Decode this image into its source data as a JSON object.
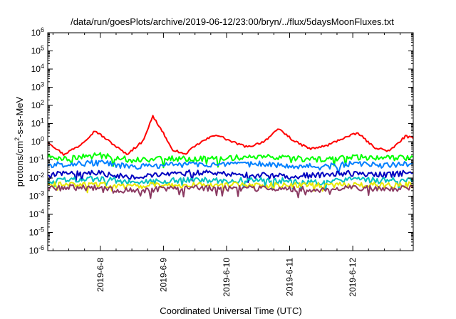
{
  "chart_data": {
    "type": "line",
    "title": "/data/run/goesPlots/archive/2019-06-12/23:00/bryn/../flux/5daysMoonFluxes.txt",
    "xlabel": "Coordinated Universal Time (UTC)",
    "ylabel": "protons/cm²-s-sr-MeV",
    "ylabel_parts": {
      "pre": "protons/cm",
      "sup": "2",
      "post": "-s-sr-MeV"
    },
    "y_scale": "log",
    "ylim": [
      1e-06,
      1000000.0
    ],
    "xlim": [
      "2019-06-07T04:00",
      "2019-06-12T23:00"
    ],
    "x_ticks": [
      "2019-6-8",
      "2019-6-9",
      "2019-6-10",
      "2019-6-11",
      "2019-6-12"
    ],
    "y_ticks": [
      {
        "base": "10",
        "exp": "6"
      },
      {
        "base": "10",
        "exp": "5"
      },
      {
        "base": "10",
        "exp": "4"
      },
      {
        "base": "10",
        "exp": "3"
      },
      {
        "base": "10",
        "exp": "2"
      },
      {
        "base": "10",
        "exp": "1"
      },
      {
        "base": "10",
        "exp": "0"
      },
      {
        "base": "10",
        "exp": "-1"
      },
      {
        "base": "10",
        "exp": "-2"
      },
      {
        "base": "10",
        "exp": "-3"
      },
      {
        "base": "10",
        "exp": "-4"
      },
      {
        "base": "10",
        "exp": "-5"
      },
      {
        "base": "10",
        "exp": "-6"
      }
    ],
    "grid": false,
    "series": [
      {
        "color": "#ff0000",
        "x": [
          "2019-06-07T04:00",
          "2019-06-07T10:00",
          "2019-06-07T16:00",
          "2019-06-07T22:00",
          "2019-06-08T04:00",
          "2019-06-08T10:00",
          "2019-06-08T16:00",
          "2019-06-08T20:00",
          "2019-06-09T00:00",
          "2019-06-09T03:00",
          "2019-06-09T08:00",
          "2019-06-09T14:00",
          "2019-06-09T20:00",
          "2019-06-10T02:00",
          "2019-06-10T08:00",
          "2019-06-10T14:00",
          "2019-06-10T20:00",
          "2019-06-11T02:00",
          "2019-06-11T08:00",
          "2019-06-11T14:00",
          "2019-06-11T20:00",
          "2019-06-12T02:00",
          "2019-06-12T08:00",
          "2019-06-12T14:00",
          "2019-06-12T20:00",
          "2019-06-12T23:00"
        ],
        "y": [
          1.0,
          0.2,
          0.6,
          4.0,
          0.9,
          0.2,
          1.0,
          25,
          3.0,
          0.4,
          0.2,
          0.9,
          2.5,
          1.0,
          0.5,
          1.0,
          5.0,
          1.0,
          0.4,
          0.6,
          1.5,
          3.0,
          0.5,
          0.3,
          2.0,
          1.5
        ]
      },
      {
        "color": "#00ff00",
        "x": [
          "2019-06-07T04:00",
          "2019-06-07T12:00",
          "2019-06-08T00:00",
          "2019-06-08T12:00",
          "2019-06-09T00:00",
          "2019-06-09T12:00",
          "2019-06-10T00:00",
          "2019-06-10T12:00",
          "2019-06-11T00:00",
          "2019-06-11T12:00",
          "2019-06-12T00:00",
          "2019-06-12T12:00",
          "2019-06-12T23:00"
        ],
        "y": [
          0.15,
          0.12,
          0.18,
          0.1,
          0.12,
          0.11,
          0.13,
          0.15,
          0.12,
          0.1,
          0.15,
          0.12,
          0.14
        ]
      },
      {
        "color": "#0080ff",
        "x": [
          "2019-06-07T04:00",
          "2019-06-07T12:00",
          "2019-06-08T00:00",
          "2019-06-08T12:00",
          "2019-06-09T00:00",
          "2019-06-09T12:00",
          "2019-06-10T00:00",
          "2019-06-10T12:00",
          "2019-06-11T00:00",
          "2019-06-11T12:00",
          "2019-06-12T00:00",
          "2019-06-12T12:00",
          "2019-06-12T23:00"
        ],
        "y": [
          0.05,
          0.06,
          0.07,
          0.04,
          0.05,
          0.06,
          0.05,
          0.06,
          0.05,
          0.04,
          0.06,
          0.05,
          0.06
        ]
      },
      {
        "color": "#0000c0",
        "x": [
          "2019-06-07T04:00",
          "2019-06-07T12:00",
          "2019-06-08T00:00",
          "2019-06-08T12:00",
          "2019-06-09T00:00",
          "2019-06-09T12:00",
          "2019-06-10T00:00",
          "2019-06-10T12:00",
          "2019-06-11T00:00",
          "2019-06-11T12:00",
          "2019-06-12T00:00",
          "2019-06-12T12:00",
          "2019-06-12T23:00"
        ],
        "y": [
          0.015,
          0.02,
          0.018,
          0.012,
          0.015,
          0.02,
          0.017,
          0.014,
          0.012,
          0.015,
          0.018,
          0.015,
          0.02
        ]
      },
      {
        "color": "#00c0c0",
        "x": [
          "2019-06-07T04:00",
          "2019-06-07T12:00",
          "2019-06-08T00:00",
          "2019-06-08T12:00",
          "2019-06-09T00:00",
          "2019-06-09T12:00",
          "2019-06-10T00:00",
          "2019-06-10T12:00",
          "2019-06-11T00:00",
          "2019-06-11T12:00",
          "2019-06-12T00:00",
          "2019-06-12T12:00",
          "2019-06-12T23:00"
        ],
        "y": [
          0.007,
          0.008,
          0.009,
          0.006,
          0.007,
          0.008,
          0.007,
          0.008,
          0.007,
          0.006,
          0.008,
          0.007,
          0.008
        ]
      },
      {
        "color": "#e8e800",
        "x": [
          "2019-06-07T04:00",
          "2019-06-07T12:00",
          "2019-06-08T00:00",
          "2019-06-08T12:00",
          "2019-06-09T00:00",
          "2019-06-09T12:00",
          "2019-06-10T00:00",
          "2019-06-10T12:00",
          "2019-06-11T00:00",
          "2019-06-11T12:00",
          "2019-06-12T00:00",
          "2019-06-12T12:00",
          "2019-06-12T23:00"
        ],
        "y": [
          0.004,
          0.0045,
          0.0042,
          0.0038,
          0.004,
          0.0043,
          0.0041,
          0.004,
          0.0039,
          0.0042,
          0.004,
          0.0041,
          0.0042
        ]
      },
      {
        "color": "#8b3a62",
        "x": [
          "2019-06-07T04:00",
          "2019-06-07T12:00",
          "2019-06-08T00:00",
          "2019-06-08T12:00",
          "2019-06-09T00:00",
          "2019-06-09T12:00",
          "2019-06-10T00:00",
          "2019-06-10T12:00",
          "2019-06-11T00:00",
          "2019-06-11T12:00",
          "2019-06-12T00:00",
          "2019-06-12T12:00",
          "2019-06-12T23:00"
        ],
        "y": [
          0.0025,
          0.003,
          0.0028,
          0.002,
          0.0025,
          0.0028,
          0.0027,
          0.0026,
          0.0025,
          0.0022,
          0.0027,
          0.0026,
          0.0028
        ]
      }
    ]
  }
}
